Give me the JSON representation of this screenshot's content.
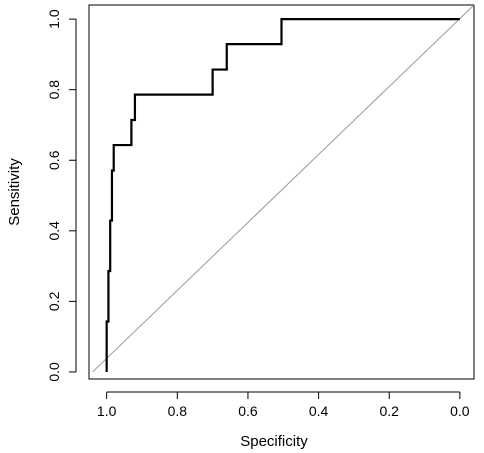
{
  "chart_data": {
    "type": "line",
    "xlabel": "Specificity",
    "ylabel": "Sensitivity",
    "xlim": [
      1.05,
      -0.04
    ],
    "ylim": [
      -0.02,
      1.04
    ],
    "x_reversed": true,
    "x_ticks": [
      1.0,
      0.8,
      0.6,
      0.4,
      0.2,
      0.0
    ],
    "x_tick_labels": [
      "1.0",
      "0.8",
      "0.6",
      "0.4",
      "0.2",
      "0.0"
    ],
    "y_ticks": [
      0.0,
      0.2,
      0.4,
      0.6,
      0.8,
      1.0
    ],
    "y_tick_labels": [
      "0.0",
      "0.2",
      "0.4",
      "0.6",
      "0.8",
      "1.0"
    ],
    "grid": false,
    "series": [
      {
        "specificity": [
          1.0,
          1.0,
          0.995,
          0.995,
          0.99,
          0.99,
          0.985,
          0.985,
          0.98,
          0.98,
          0.975,
          0.975,
          0.93,
          0.93,
          0.92,
          0.92,
          0.7,
          0.7,
          0.66,
          0.66,
          0.505,
          0.505,
          0.0
        ],
        "sensitivity": [
          0.0,
          0.143,
          0.143,
          0.286,
          0.286,
          0.429,
          0.429,
          0.571,
          0.571,
          0.643,
          0.643,
          0.643,
          0.643,
          0.714,
          0.714,
          0.786,
          0.786,
          0.857,
          0.857,
          0.929,
          0.929,
          1.0,
          1.0
        ],
        "color": "#000000"
      }
    ],
    "reference_line": {
      "from": [
        1.04,
        0.0
      ],
      "to": [
        -0.04,
        1.04
      ],
      "color": "#9a9a9a"
    }
  }
}
